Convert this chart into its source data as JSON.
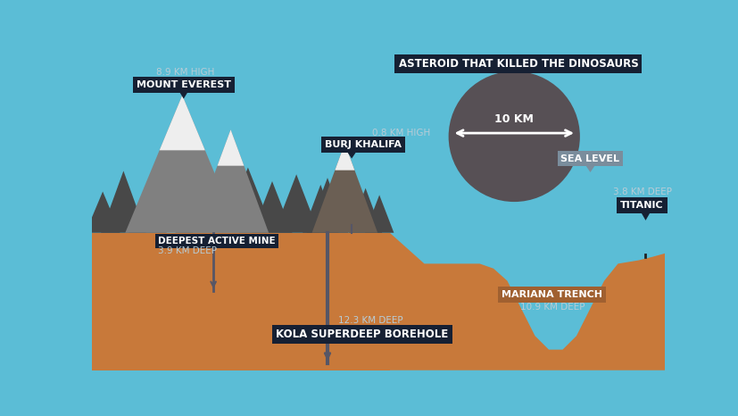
{
  "bg_sky": "#5bbdd6",
  "bg_ground": "#c8793a",
  "title_asteroid": "ASTEROID THAT KILLED THE DINOSAURS",
  "label_everest_top": "8.9 KM HIGH",
  "label_everest": "MOUNT EVEREST",
  "label_burj_top": "0.8 KM HIGH",
  "label_burj": "BURJ KHALIFA",
  "label_mine": "DEEPEST ACTIVE MINE",
  "label_mine_depth": "3.9 KM DEEP",
  "label_borehole": "KOLA SUPERDEEP BOREHOLE",
  "label_borehole_depth": "12.3 KM DEEP",
  "label_sea": "SEA LEVEL",
  "label_titanic_depth": "3.8 KM DEEP",
  "label_titanic": "TITANIC",
  "label_trench": "MARIANA TRENCH",
  "label_trench_depth": "10.9 KM DEEP",
  "label_asteroid_diam": "10 KM",
  "mountain_light": "#808080",
  "mountain_dark": "#484848",
  "mountain_brown": "#6b5f54",
  "mountain_snow": "#eeeeee",
  "borehole_color": "#565666",
  "asteroid_color": "#575055",
  "label_bg_dark": "#162033",
  "label_bg_gray": "#7a8d9c",
  "label_bg_brown": "#a06030",
  "label_text": "#ffffff",
  "label_note": "#b8ccd6"
}
